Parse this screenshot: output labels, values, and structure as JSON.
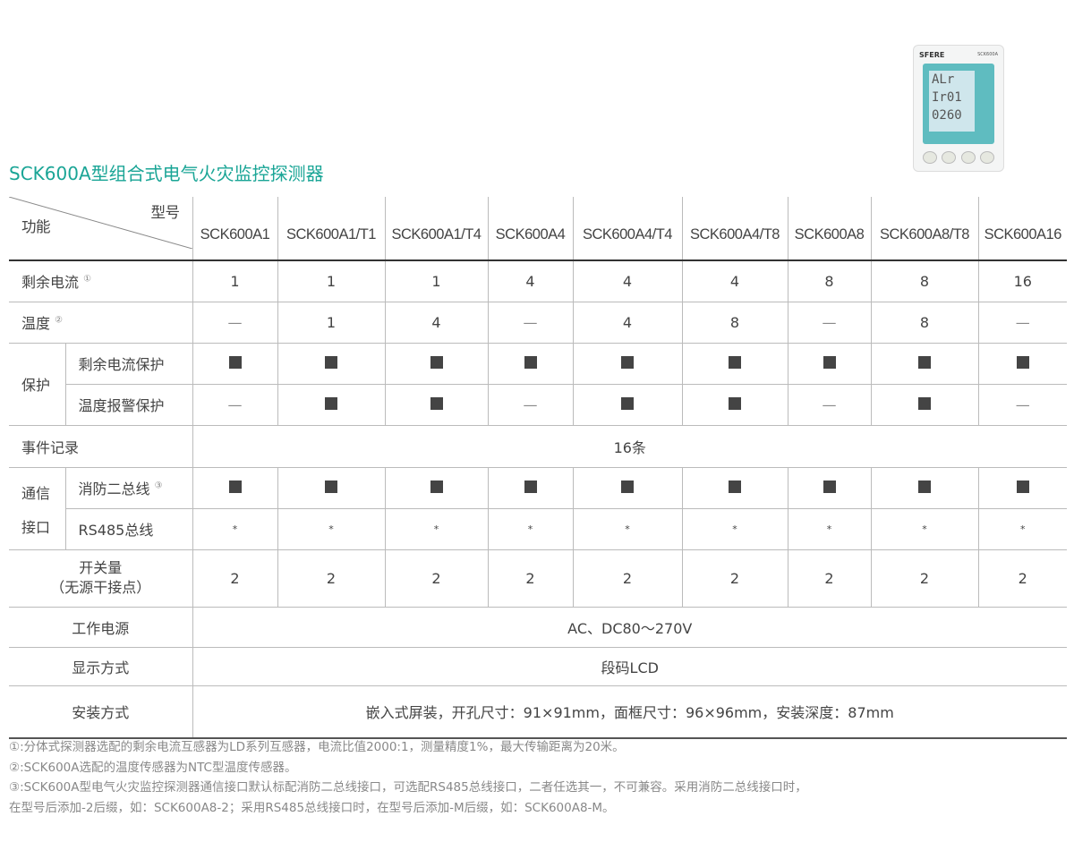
{
  "title": "SCK600A型组合式电气火灾监控探测器",
  "device": {
    "brand": "SFERE",
    "model": "SCK600A",
    "lcd": [
      "ALr",
      "Ir01",
      "0260"
    ]
  },
  "header": {
    "model_label": "型号",
    "function_label": "功能",
    "models": [
      "SCK600A1",
      "SCK600A1/T1",
      "SCK600A1/T4",
      "SCK600A4",
      "SCK600A4/T4",
      "SCK600A4/T8",
      "SCK600A8",
      "SCK600A8/T8",
      "SCK600A16"
    ]
  },
  "rows": {
    "residual": {
      "label": "剩余电流",
      "note": "①",
      "values": [
        "1",
        "1",
        "1",
        "4",
        "4",
        "4",
        "8",
        "8",
        "16"
      ]
    },
    "temp": {
      "label": "温度",
      "note": "②",
      "values": [
        "—",
        "1",
        "4",
        "—",
        "4",
        "8",
        "—",
        "8",
        "—"
      ]
    },
    "protect": {
      "label": "保护",
      "sub1": "剩余电流保护",
      "sub1_values": [
        "sq",
        "sq",
        "sq",
        "sq",
        "sq",
        "sq",
        "sq",
        "sq",
        "sq"
      ],
      "sub2": "温度报警保护",
      "sub2_values": [
        "—",
        "sq",
        "sq",
        "—",
        "sq",
        "sq",
        "—",
        "sq",
        "—"
      ]
    },
    "events": {
      "label": "事件记录",
      "value": "16条"
    },
    "comm": {
      "label1": "通信",
      "label2": "接口",
      "sub1": "消防二总线",
      "sub1_note": "③",
      "sub1_values": [
        "sq",
        "sq",
        "sq",
        "sq",
        "sq",
        "sq",
        "sq",
        "sq",
        "sq"
      ],
      "sub2": "RS485总线",
      "sub2_values": [
        "*",
        "*",
        "*",
        "*",
        "*",
        "*",
        "*",
        "*",
        "*"
      ]
    },
    "switch": {
      "label1": "开关量",
      "label2": "（无源干接点）",
      "values": [
        "2",
        "2",
        "2",
        "2",
        "2",
        "2",
        "2",
        "2",
        "2"
      ]
    },
    "power": {
      "label": "工作电源",
      "value": "AC、DC80～270V"
    },
    "display": {
      "label": "显示方式",
      "value": "段码LCD"
    },
    "install": {
      "label": "安装方式",
      "value": "嵌入式屏装，开孔尺寸：91×91mm，面框尺寸：96×96mm，安装深度：87mm"
    }
  },
  "notes": [
    "①:分体式探测器选配的剩余电流互感器为LD系列互感器，电流比值2000:1，测量精度1%，最大传输距离为20米。",
    "②:SCK600A选配的温度传感器为NTC型温度传感器。",
    "③:SCK600A型电气火灾监控探测器通信接口默认标配消防二总线接口，可选配RS485总线接口，二者任选其一，不可兼容。采用消防二总线接口时，",
    "在型号后添加-2后缀，如：SCK600A8-2；采用RS485总线接口时，在型号后添加-M后缀，如：SCK600A8-M。"
  ]
}
